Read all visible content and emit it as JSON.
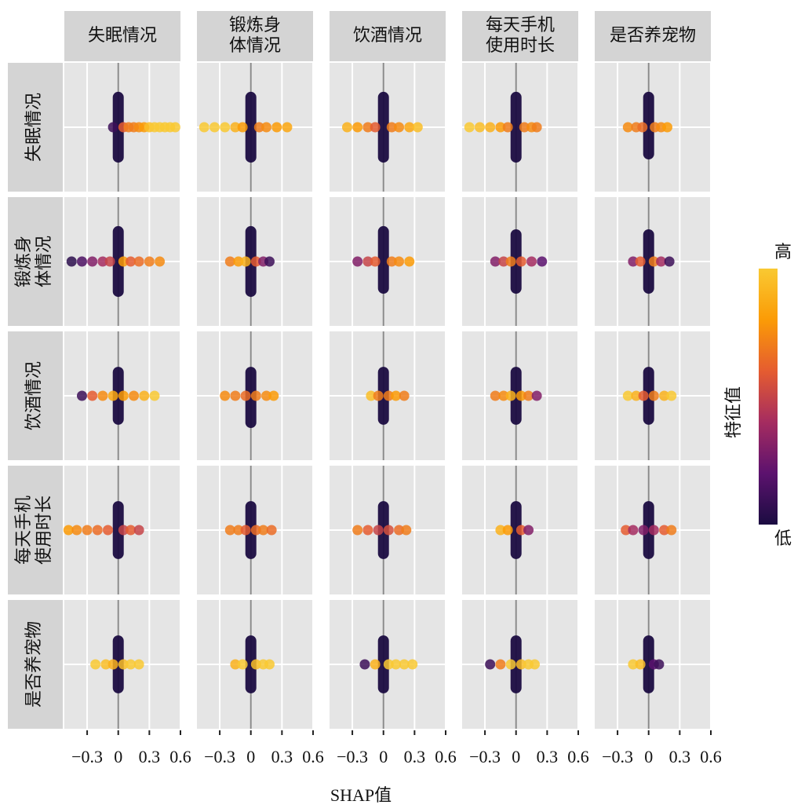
{
  "chart_data": {
    "type": "scatter",
    "row_labels": [
      "失眠情况",
      "锻炼身体情况",
      "饮酒情况",
      "每天手机使用时长",
      "是否养宠物"
    ],
    "column_labels": [
      "失眠情况",
      "锻炼身体情况",
      "饮酒情况",
      "每天手机使用时长",
      "是否养宠物"
    ],
    "xlabel": "SHAP值",
    "xlim": [
      -0.52,
      0.6
    ],
    "xticks": [
      {
        "value": -0.3,
        "label": "−0.3"
      },
      0,
      0.3,
      0.6
    ],
    "ylim": [
      -1,
      1
    ],
    "yticks": [
      0
    ],
    "grid": true,
    "colorbar": {
      "title": "特征值",
      "high": "高",
      "low": "低",
      "colors": [
        "#1b0c41",
        "#5c126e",
        "#a52c60",
        "#e55c30",
        "#fb9b06",
        "#f9c932"
      ]
    },
    "panels": [
      [
        {
          "column": [
            -0.55,
            0.55
          ],
          "x": [
            -0.05,
            0.05,
            0.1,
            0.15,
            0.2,
            0.25,
            0.3,
            0.35,
            0.4,
            0.45,
            0.5,
            0.55
          ],
          "feature": [
            0.1,
            0.6,
            0.7,
            0.7,
            0.75,
            0.8,
            0.95,
            1,
            1,
            1,
            1,
            1
          ]
        },
        {
          "column": [
            -0.55,
            0.55
          ],
          "x": [
            -0.45,
            -0.35,
            -0.25,
            -0.15,
            -0.08,
            0.08,
            0.15,
            0.25,
            0.35
          ],
          "feature": [
            1,
            1,
            1,
            0.9,
            0.8,
            0.7,
            0.75,
            0.8,
            0.85
          ]
        },
        {
          "column": [
            -0.55,
            0.55
          ],
          "x": [
            -0.35,
            -0.25,
            -0.15,
            -0.08,
            0.08,
            0.15,
            0.25,
            0.33
          ],
          "feature": [
            0.9,
            0.8,
            0.7,
            0.6,
            0.7,
            0.75,
            0.85,
            0.95
          ]
        },
        {
          "column": [
            -0.55,
            0.55
          ],
          "x": [
            -0.45,
            -0.35,
            -0.25,
            -0.15,
            -0.08,
            0.08,
            0.15,
            0.2
          ],
          "feature": [
            1,
            0.95,
            0.9,
            0.8,
            0.7,
            0.7,
            0.75,
            0.7
          ]
        },
        {
          "column": [
            -0.5,
            0.55
          ],
          "x": [
            -0.2,
            -0.12,
            -0.06,
            0.06,
            0.12,
            0.18
          ],
          "feature": [
            0.75,
            0.7,
            0.65,
            0.7,
            0.75,
            0.8
          ]
        }
      ],
      [
        {
          "column": [
            -0.55,
            0.55
          ],
          "x": [
            -0.45,
            -0.35,
            -0.25,
            -0.15,
            -0.08,
            0.05,
            0.12,
            0.2,
            0.3,
            0.4
          ],
          "feature": [
            0.05,
            0.15,
            0.3,
            0.4,
            0.5,
            0.8,
            0.6,
            0.65,
            0.7,
            0.75
          ]
        },
        {
          "column": [
            -0.55,
            0.55
          ],
          "x": [
            -0.2,
            -0.12,
            -0.05,
            0.05,
            0.12,
            0.18
          ],
          "feature": [
            0.7,
            0.8,
            0.9,
            0.6,
            0.3,
            0.1
          ]
        },
        {
          "column": [
            -0.5,
            0.55
          ],
          "x": [
            -0.25,
            -0.15,
            -0.08,
            0.08,
            0.15,
            0.25
          ],
          "feature": [
            0.3,
            0.5,
            0.6,
            0.7,
            0.75,
            0.8
          ]
        },
        {
          "column": [
            -0.5,
            0.5
          ],
          "x": [
            -0.2,
            -0.12,
            -0.05,
            0.05,
            0.15,
            0.25
          ],
          "feature": [
            0.3,
            0.5,
            0.7,
            0.6,
            0.4,
            0.2
          ]
        },
        {
          "column": [
            -0.5,
            0.5
          ],
          "x": [
            -0.15,
            -0.08,
            0.05,
            0.12,
            0.2
          ],
          "feature": [
            0.3,
            0.6,
            0.7,
            0.4,
            0.1
          ]
        }
      ],
      [
        {
          "column": [
            -0.45,
            0.45
          ],
          "x": [
            -0.35,
            -0.25,
            -0.15,
            -0.05,
            0.05,
            0.15,
            0.25,
            0.35
          ],
          "feature": [
            0.1,
            0.6,
            0.75,
            0.85,
            0.8,
            0.75,
            0.9,
            1
          ]
        },
        {
          "column": [
            -0.5,
            0.45
          ],
          "x": [
            -0.25,
            -0.15,
            -0.05,
            0.05,
            0.15,
            0.22
          ],
          "feature": [
            0.75,
            0.7,
            0.65,
            0.7,
            0.75,
            0.8
          ]
        },
        {
          "column": [
            -0.45,
            0.45
          ],
          "x": [
            -0.12,
            -0.05,
            0.05,
            0.12,
            0.2
          ],
          "feature": [
            0.95,
            0.7,
            0.7,
            0.8,
            0.7
          ]
        },
        {
          "column": [
            -0.45,
            0.45
          ],
          "x": [
            -0.2,
            -0.12,
            -0.05,
            0.05,
            0.12,
            0.2
          ],
          "feature": [
            0.7,
            0.75,
            0.9,
            0.8,
            0.7,
            0.3
          ]
        },
        {
          "column": [
            -0.45,
            0.45
          ],
          "x": [
            -0.2,
            -0.12,
            -0.05,
            0.05,
            0.15,
            0.22
          ],
          "feature": [
            1,
            0.9,
            0.6,
            0.7,
            0.9,
            1
          ]
        }
      ],
      [
        {
          "column": [
            -0.45,
            0.45
          ],
          "x": [
            -0.48,
            -0.4,
            -0.3,
            -0.2,
            -0.1,
            0.05,
            0.12,
            0.2
          ],
          "feature": [
            0.8,
            0.75,
            0.7,
            0.65,
            0.6,
            0.5,
            0.6,
            0.5
          ]
        },
        {
          "column": [
            -0.45,
            0.45
          ],
          "x": [
            -0.2,
            -0.12,
            -0.05,
            0.05,
            0.12,
            0.2
          ],
          "feature": [
            0.7,
            0.7,
            0.6,
            0.65,
            0.7,
            0.65
          ]
        },
        {
          "column": [
            -0.45,
            0.45
          ],
          "x": [
            -0.25,
            -0.15,
            -0.05,
            0.05,
            0.15,
            0.22
          ],
          "feature": [
            0.7,
            0.6,
            0.5,
            0.55,
            0.65,
            0.7
          ]
        },
        {
          "column": [
            -0.45,
            0.45
          ],
          "x": [
            -0.15,
            -0.08,
            0.05,
            0.12
          ],
          "feature": [
            0.9,
            0.8,
            0.6,
            0.3
          ]
        },
        {
          "column": [
            -0.45,
            0.45
          ],
          "x": [
            -0.22,
            -0.15,
            -0.05,
            0.05,
            0.15,
            0.22
          ],
          "feature": [
            0.6,
            0.4,
            0.3,
            0.4,
            0.6,
            0.7
          ]
        }
      ],
      [
        {
          "column": [
            -0.45,
            0.45
          ],
          "x": [
            -0.22,
            -0.12,
            -0.05,
            0.05,
            0.12,
            0.2
          ],
          "feature": [
            1,
            0.95,
            0.9,
            0.95,
            1,
            1
          ]
        },
        {
          "column": [
            -0.45,
            0.45
          ],
          "x": [
            -0.15,
            -0.08,
            0.05,
            0.12,
            0.18
          ],
          "feature": [
            0.9,
            1,
            0.95,
            1,
            1
          ]
        },
        {
          "column": [
            -0.45,
            0.45
          ],
          "x": [
            -0.18,
            -0.08,
            0.05,
            0.12,
            0.2,
            0.28
          ],
          "feature": [
            0.1,
            0.9,
            1,
            1,
            1,
            1
          ]
        },
        {
          "column": [
            -0.45,
            0.45
          ],
          "x": [
            -0.25,
            -0.15,
            -0.05,
            0.05,
            0.12,
            0.18
          ],
          "feature": [
            0.1,
            0.7,
            1,
            0.95,
            1,
            1
          ]
        },
        {
          "column": [
            -0.45,
            0.45
          ],
          "x": [
            -0.15,
            -0.08,
            0.05,
            0.1
          ],
          "feature": [
            1,
            0.95,
            0.2,
            0.1
          ]
        }
      ]
    ]
  }
}
